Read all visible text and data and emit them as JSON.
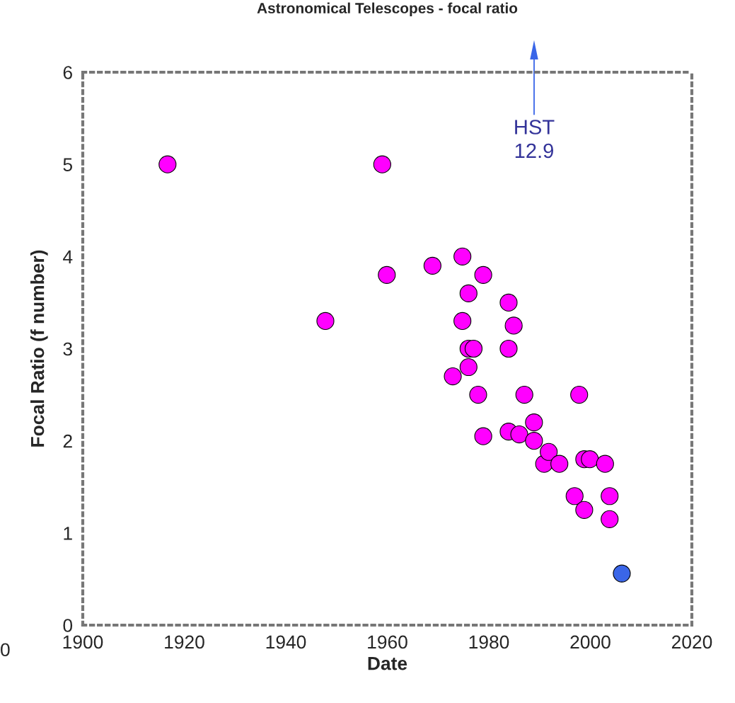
{
  "chart_data": {
    "type": "scatter",
    "title": "Astronomical Telescopes - focal ratio",
    "xlabel": "Date",
    "ylabel": "Focal Ratio (f number)",
    "series": [
      {
        "color": "#ff00ff",
        "x": [
          1916.7,
          1959,
          1947.8,
          1959.9,
          1968.9,
          1974.8,
          1978.9,
          1976,
          1974.8,
          1976,
          1977,
          1976,
          1972.9,
          1977.9,
          1978.9,
          1983.9,
          1984.9,
          1983.9,
          1987,
          1983.9,
          1986,
          1988.9,
          1988.9,
          1990.9,
          1991.8,
          1993.9,
          1997.8,
          1996.9,
          1998.8,
          1999.9,
          1998.8,
          2002.9,
          2003.8,
          2003.8
        ],
        "values": [
          5.0,
          5.0,
          3.3,
          3.8,
          3.9,
          4.0,
          3.8,
          3.6,
          3.3,
          3.0,
          3.0,
          2.8,
          2.7,
          2.5,
          2.05,
          3.5,
          3.25,
          3.0,
          2.5,
          2.1,
          2.07,
          2.2,
          2.0,
          1.75,
          1.88,
          1.75,
          2.5,
          1.4,
          1.8,
          1.8,
          1.25,
          1.75,
          1.4,
          1.15
        ]
      },
      {
        "color": "#3a66e8",
        "x": [
          2006.2
        ],
        "values": [
          0.56
        ]
      }
    ],
    "annotations": [
      "HST\n12.9",
      "0"
    ],
    "xlim": [
      1900,
      2020
    ],
    "xticks": [
      1900,
      1920,
      1940,
      1960,
      1980,
      2000,
      2020
    ],
    "ylim": [
      0,
      6
    ],
    "yticks": [
      0,
      1,
      2,
      3,
      4,
      5,
      6
    ],
    "marker": "circle",
    "grid": false
  }
}
